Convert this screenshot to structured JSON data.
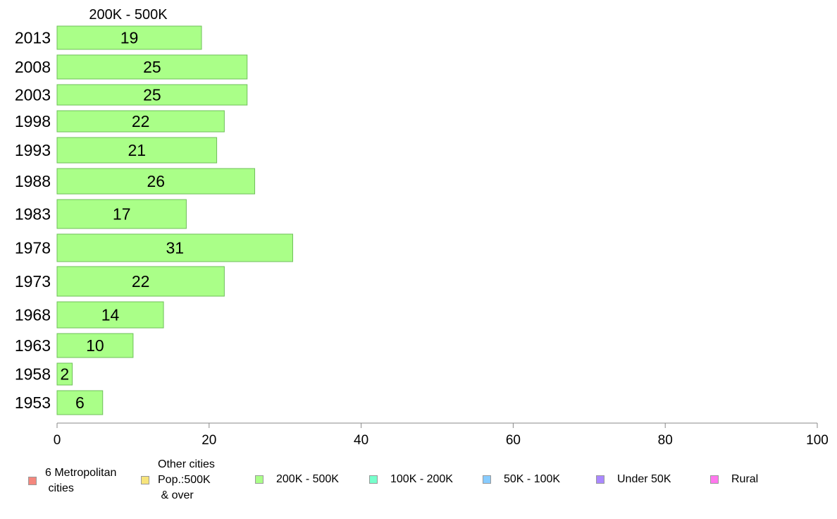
{
  "chart_data": {
    "type": "bar",
    "orientation": "horizontal",
    "title": "200K - 500K",
    "categories": [
      "2013",
      "2008",
      "2003",
      "1998",
      "1993",
      "1988",
      "1983",
      "1978",
      "1973",
      "1968",
      "1963",
      "1958",
      "1953"
    ],
    "series": [
      {
        "name": "200K - 500K",
        "color": "#aaff88",
        "values": [
          19,
          25,
          25,
          22,
          21,
          26,
          17,
          31,
          22,
          14,
          10,
          2,
          6
        ]
      }
    ],
    "xlim": [
      0,
      100
    ],
    "xticks": [
      0,
      20,
      40,
      60,
      80,
      100
    ],
    "grid": false,
    "legend_position": "bottom"
  },
  "legend": {
    "items": [
      {
        "label": "6 Metropolitan\n cities",
        "color": "#f4877d"
      },
      {
        "label": "Other cities\nPop.:500K\n & over",
        "color": "#f7e47b"
      },
      {
        "label": "200K - 500K",
        "color": "#aaff88"
      },
      {
        "label": "100K - 200K",
        "color": "#77ffcc"
      },
      {
        "label": "50K - 100K",
        "color": "#88ccff"
      },
      {
        "label": "Under 50K",
        "color": "#aa88ff"
      },
      {
        "label": "Rural",
        "color": "#ff77ee"
      }
    ]
  }
}
